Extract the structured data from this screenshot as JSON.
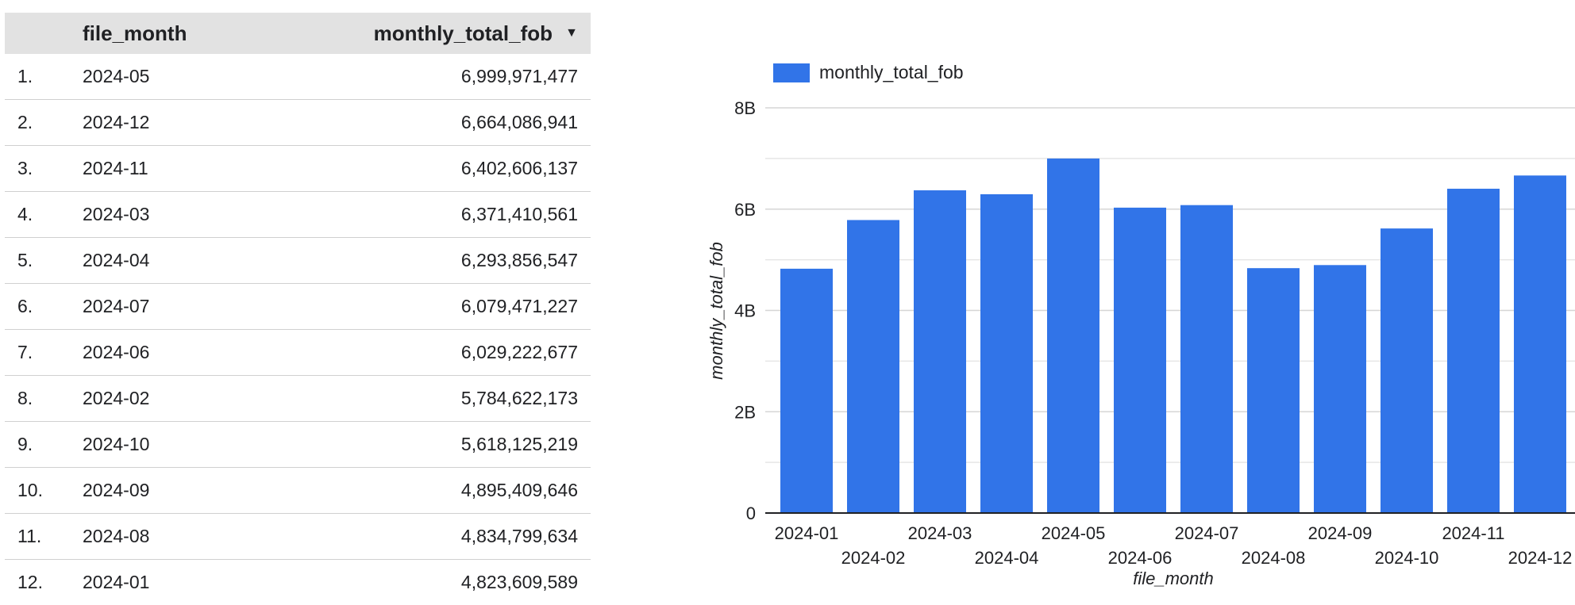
{
  "table": {
    "columns": {
      "index": "",
      "month": "file_month",
      "value": "monthly_total_fob"
    },
    "sort_icon": "sort-descending-icon",
    "rows": [
      {
        "idx": "1.",
        "month": "2024-05",
        "value": "6,999,971,477"
      },
      {
        "idx": "2.",
        "month": "2024-12",
        "value": "6,664,086,941"
      },
      {
        "idx": "3.",
        "month": "2024-11",
        "value": "6,402,606,137"
      },
      {
        "idx": "4.",
        "month": "2024-03",
        "value": "6,371,410,561"
      },
      {
        "idx": "5.",
        "month": "2024-04",
        "value": "6,293,856,547"
      },
      {
        "idx": "6.",
        "month": "2024-07",
        "value": "6,079,471,227"
      },
      {
        "idx": "7.",
        "month": "2024-06",
        "value": "6,029,222,677"
      },
      {
        "idx": "8.",
        "month": "2024-02",
        "value": "5,784,622,173"
      },
      {
        "idx": "9.",
        "month": "2024-10",
        "value": "5,618,125,219"
      },
      {
        "idx": "10.",
        "month": "2024-09",
        "value": "4,895,409,646"
      },
      {
        "idx": "11.",
        "month": "2024-08",
        "value": "4,834,799,634"
      },
      {
        "idx": "12.",
        "month": "2024-01",
        "value": "4,823,609,589"
      }
    ]
  },
  "chart_data": {
    "type": "bar",
    "title": "",
    "xlabel": "file_month",
    "ylabel": "monthly_total_fob",
    "categories": [
      "2024-01",
      "2024-02",
      "2024-03",
      "2024-04",
      "2024-05",
      "2024-06",
      "2024-07",
      "2024-08",
      "2024-09",
      "2024-10",
      "2024-11",
      "2024-12"
    ],
    "series": [
      {
        "name": "monthly_total_fob",
        "color": "#3174e8",
        "values": [
          4823609589,
          5784622173,
          6371410561,
          6293856547,
          6999971477,
          6029222677,
          6079471227,
          4834799634,
          4895409646,
          5618125219,
          6402606137,
          6664086941
        ]
      }
    ],
    "ylim": [
      0,
      8000000000
    ],
    "yticks": [
      0,
      2000000000,
      4000000000,
      6000000000,
      8000000000
    ],
    "ytick_labels": [
      "0",
      "2B",
      "4B",
      "6B",
      "8B"
    ],
    "grid": true,
    "legend": "top-left"
  }
}
